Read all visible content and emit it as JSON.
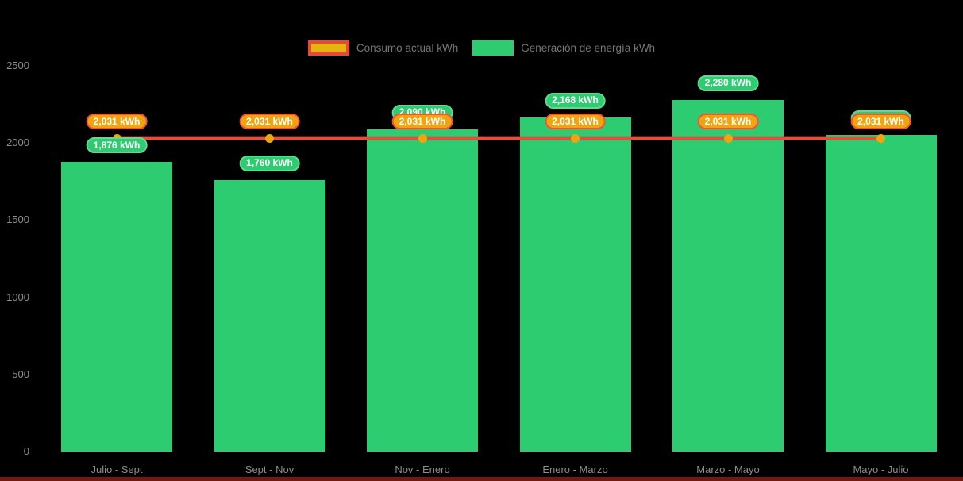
{
  "legend": {
    "consumption_label": "Consumo actual kWh",
    "generation_label": "Generación de energía kWh"
  },
  "chart_data": {
    "type": "bar",
    "categories": [
      "Julio - Sept",
      "Sept - Nov",
      "Nov - Enero",
      "Enero - Marzo",
      "Marzo - Mayo",
      "Mayo - Julio"
    ],
    "series": [
      {
        "name": "Consumo actual kWh",
        "type": "line",
        "color": "#e74c3c",
        "marker_color": "#f0a50e",
        "values": [
          2031,
          2031,
          2031,
          2031,
          2031,
          2031
        ],
        "labels": [
          "2,031 kWh",
          "2,031 kWh",
          "2,031 kWh",
          "2,031 kWh",
          "2,031 kWh",
          "2,031 kWh"
        ]
      },
      {
        "name": "Generación de energía kWh",
        "type": "bar",
        "color": "#2ecc71",
        "values": [
          1876,
          1760,
          2090,
          2168,
          2280,
          2054
        ],
        "labels": [
          "1,876 kWh",
          "1,760 kWh",
          "2,090 kWh",
          "2,168 kWh",
          "2,280 kWh",
          "2,054 kWh"
        ]
      }
    ],
    "unit": "kWh",
    "ylim": [
      0,
      2500
    ],
    "yticks": [
      0,
      500,
      1000,
      1500,
      2000,
      2500
    ],
    "ytick_labels": [
      "0",
      "500",
      "1000",
      "1500",
      "2000",
      "2500"
    ],
    "grid": false,
    "legend_position": "top"
  },
  "colors": {
    "background": "#000000",
    "bar": "#2ecc71",
    "bar_badge_border": "#5fd993",
    "line": "#e8473b",
    "marker": "#f0a50e",
    "consumption_badge_bg": "#f0a50e",
    "consumption_badge_border": "#ed553f",
    "legend_inner": "#e5b410",
    "legend_text": "#767676",
    "axis_text": "#8d8d8d",
    "bottom_strip": "#74190f"
  }
}
